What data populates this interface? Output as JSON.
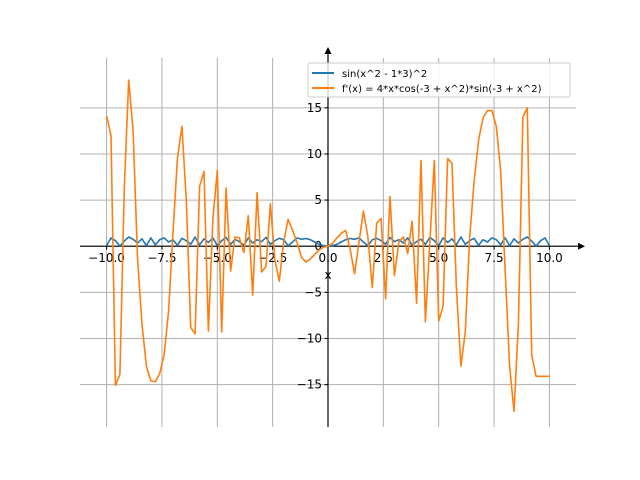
{
  "chart_data": {
    "type": "line",
    "title": "",
    "xlabel": "x",
    "ylabel": "",
    "xlim": [
      -11.2,
      11.2
    ],
    "ylim": [
      -19.6,
      20.4
    ],
    "grid": true,
    "legend_position": "top-right",
    "x_ticks": [
      -10,
      -7.5,
      -5,
      -2.5,
      0,
      2.5,
      5,
      7.5,
      10
    ],
    "x_tick_labels": [
      "−10.0",
      "−7.5",
      "−5.0",
      "−2.5",
      "0.0",
      "2.5",
      "5.0",
      "7.5",
      "10.0"
    ],
    "y_ticks": [
      -15,
      -10,
      -5,
      0,
      5,
      10,
      15
    ],
    "y_tick_labels": [
      "−15",
      "−10",
      "−5",
      "0",
      "5",
      "10",
      "15"
    ],
    "series": [
      {
        "name": "sin(x^2 - 1*3)^2",
        "color": "#1f77b4",
        "x": [
          -10.0,
          -9.8,
          -9.6,
          -9.4,
          -9.2,
          -9.0,
          -8.8,
          -8.6,
          -8.4,
          -8.2,
          -8.0,
          -7.8,
          -7.6,
          -7.4,
          -7.2,
          -7.0,
          -6.8,
          -6.6,
          -6.4,
          -6.2,
          -6.0,
          -5.8,
          -5.6,
          -5.4,
          -5.2,
          -5.0,
          -4.8,
          -4.6,
          -4.4,
          -4.2,
          -4.0,
          -3.8,
          -3.6,
          -3.4,
          -3.2,
          -3.0,
          -2.8,
          -2.6,
          -2.4,
          -2.2,
          -2.0,
          -1.8,
          -1.6,
          -1.4,
          -1.2,
          -1.0,
          -0.8,
          -0.6,
          -0.4,
          -0.2,
          0.0,
          0.2,
          0.4,
          0.6,
          0.8,
          1.0,
          1.2,
          1.4,
          1.6,
          1.8,
          2.0,
          2.2,
          2.4,
          2.6,
          2.8,
          3.0,
          3.2,
          3.4,
          3.6,
          3.8,
          4.0,
          4.2,
          4.4,
          4.6,
          4.8,
          5.0,
          5.2,
          5.4,
          5.6,
          5.8,
          6.0,
          6.2,
          6.4,
          6.6,
          6.8,
          7.0,
          7.2,
          7.4,
          7.6,
          7.8,
          8.0,
          8.2,
          8.4,
          8.6,
          8.8,
          9.0,
          9.2,
          9.4,
          9.6,
          9.8,
          10.0
        ],
        "y": [
          0.06,
          0.9,
          0.6,
          0.02,
          0.55,
          1.0,
          0.75,
          0.35,
          0.8,
          0.05,
          0.9,
          0.15,
          0.7,
          0.9,
          0.45,
          0.7,
          0.1,
          0.85,
          0.6,
          0.2,
          0.98,
          0.15,
          0.8,
          0.4,
          0.9,
          0.05,
          0.6,
          0.95,
          0.2,
          0.75,
          0.5,
          0.1,
          0.9,
          0.35,
          0.7,
          0.5,
          0.95,
          0.2,
          0.6,
          0.85,
          0.7,
          0.05,
          0.45,
          0.9,
          0.75,
          0.83,
          0.7,
          0.45,
          0.21,
          0.05,
          0.02,
          0.05,
          0.21,
          0.45,
          0.7,
          0.83,
          0.75,
          0.9,
          0.45,
          0.05,
          0.7,
          0.85,
          0.6,
          0.2,
          0.95,
          0.5,
          0.7,
          0.35,
          0.9,
          0.1,
          0.5,
          0.75,
          0.2,
          0.95,
          0.6,
          0.05,
          0.9,
          0.4,
          0.8,
          0.15,
          0.98,
          0.2,
          0.6,
          0.85,
          0.1,
          0.7,
          0.45,
          0.9,
          0.7,
          0.15,
          0.9,
          0.05,
          0.8,
          0.35,
          0.75,
          1.0,
          0.55,
          0.02,
          0.6,
          0.9,
          0.06
        ]
      },
      {
        "name": "f'(x) = 4*x*cos(-3 + x^2)*sin(-3 + x^2)",
        "color": "#ff7f0e",
        "x": [
          -10.0,
          -9.8,
          -9.6,
          -9.4,
          -9.2,
          -9.0,
          -8.8,
          -8.6,
          -8.4,
          -8.2,
          -8.0,
          -7.8,
          -7.6,
          -7.4,
          -7.2,
          -7.0,
          -6.8,
          -6.6,
          -6.4,
          -6.2,
          -6.0,
          -5.8,
          -5.6,
          -5.4,
          -5.2,
          -5.0,
          -4.8,
          -4.6,
          -4.4,
          -4.2,
          -4.0,
          -3.8,
          -3.6,
          -3.4,
          -3.2,
          -3.0,
          -2.8,
          -2.6,
          -2.4,
          -2.2,
          -2.0,
          -1.8,
          -1.6,
          -1.4,
          -1.2,
          -1.0,
          -0.8,
          -0.6,
          -0.4,
          -0.2,
          0.0,
          0.2,
          0.4,
          0.6,
          0.8,
          1.0,
          1.2,
          1.4,
          1.6,
          1.8,
          2.0,
          2.2,
          2.4,
          2.6,
          2.8,
          3.0,
          3.2,
          3.4,
          3.6,
          3.8,
          4.0,
          4.2,
          4.4,
          4.6,
          4.8,
          5.0,
          5.2,
          5.4,
          5.6,
          5.8,
          6.0,
          6.2,
          6.4,
          6.6,
          6.8,
          7.0,
          7.2,
          7.4,
          7.6,
          7.8,
          8.0,
          8.2,
          8.4,
          8.6,
          8.8,
          9.0,
          9.2,
          9.4,
          9.6,
          9.8,
          10.0
        ],
        "y": [
          14.1,
          12.0,
          -15.1,
          -13.9,
          6.3,
          18.0,
          12.5,
          -1.5,
          -8.5,
          -13.0,
          -14.6,
          -14.7,
          -13.8,
          -11.8,
          -7.0,
          1.5,
          9.5,
          13.0,
          5.0,
          -8.8,
          -9.5,
          6.5,
          8.1,
          -9.2,
          3.0,
          8.2,
          -9.3,
          6.3,
          -2.7,
          1.0,
          0.9,
          -0.7,
          3.3,
          -5.3,
          5.8,
          -2.8,
          -2.2,
          4.6,
          -1.5,
          -3.8,
          0.5,
          2.9,
          1.7,
          0.4,
          -1.2,
          -1.7,
          -1.4,
          -0.9,
          -0.4,
          -0.1,
          0.0,
          0.3,
          0.9,
          1.4,
          1.7,
          -0.3,
          -3.0,
          0.5,
          3.8,
          1.0,
          -4.5,
          2.5,
          3.0,
          -5.7,
          5.4,
          -3.2,
          0.5,
          1.0,
          -0.8,
          2.7,
          -6.2,
          9.3,
          -8.2,
          0.5,
          9.3,
          -8.1,
          -6.5,
          9.5,
          9.0,
          -4.5,
          -13.0,
          -9.3,
          1.0,
          7.0,
          11.5,
          13.9,
          14.7,
          14.7,
          13.0,
          8.1,
          -2.5,
          -13.0,
          -17.9,
          -8.5,
          14.0,
          15.0,
          -11.8,
          -14.1,
          -14.1,
          -14.1,
          -14.1
        ]
      }
    ]
  }
}
